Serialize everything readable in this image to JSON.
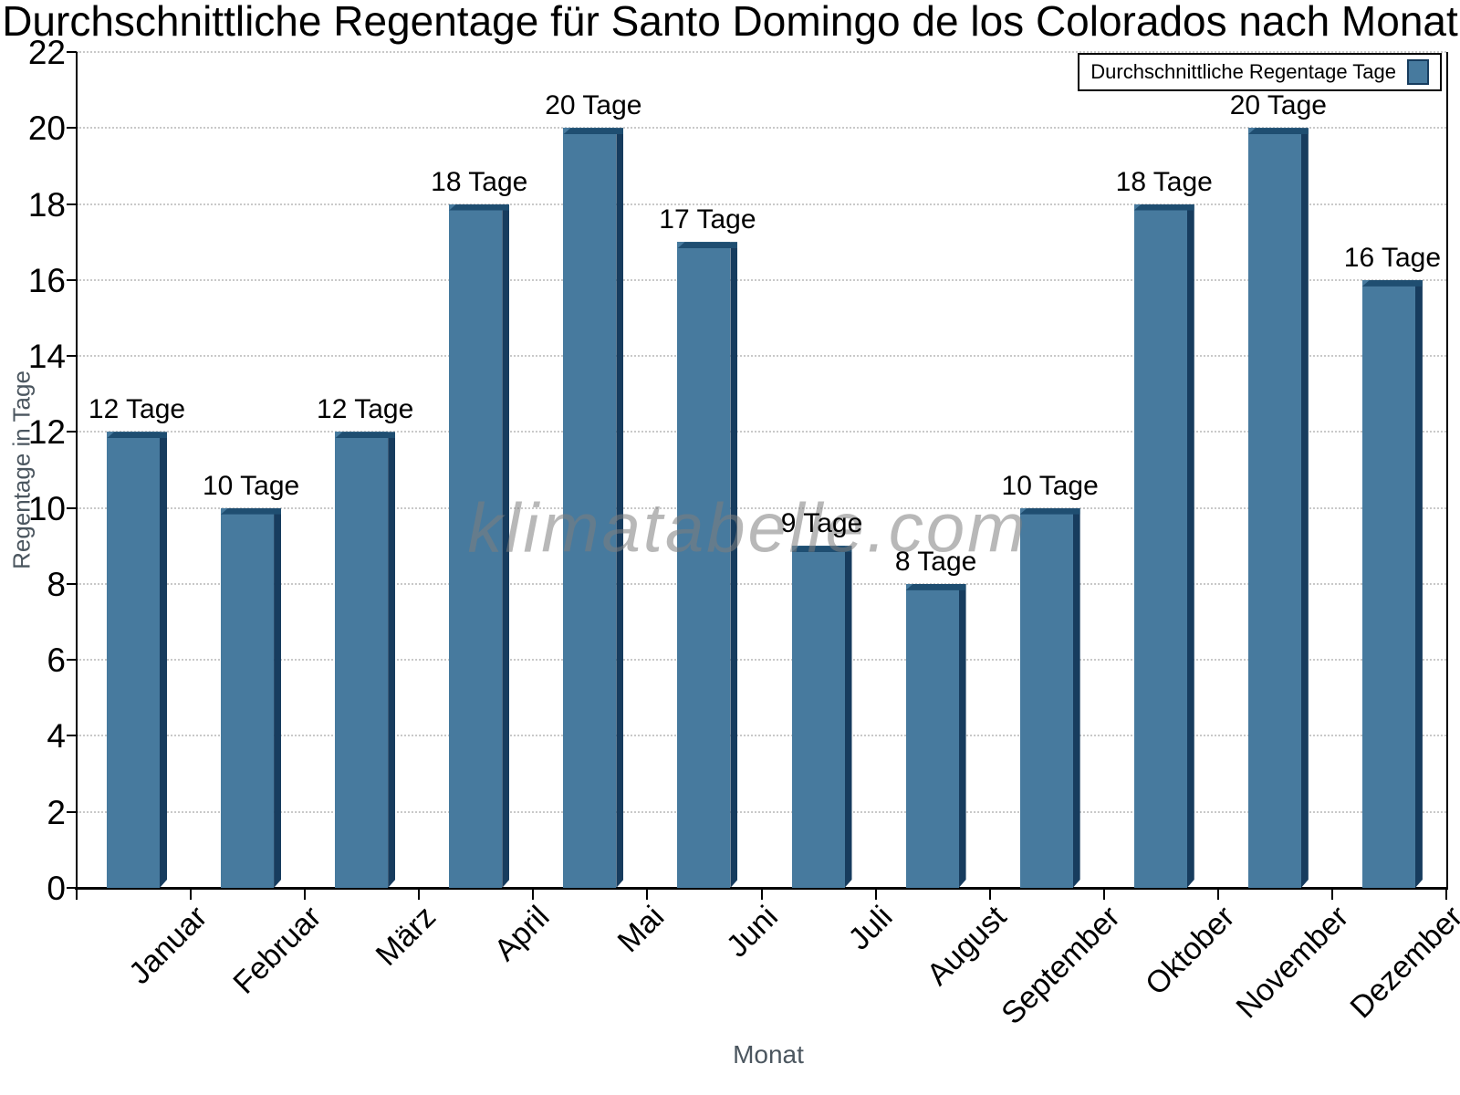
{
  "chart_data": {
    "type": "bar",
    "title": "Durchschnittliche Regentage für Santo Domingo de los Colorados nach Monat",
    "categories": [
      "Januar",
      "Februar",
      "März",
      "April",
      "Mai",
      "Juni",
      "Juli",
      "August",
      "September",
      "Oktober",
      "November",
      "Dezember"
    ],
    "values": [
      12,
      10,
      12,
      18,
      20,
      17,
      9,
      8,
      10,
      18,
      20,
      16
    ],
    "value_label_suffix": " Tage",
    "value_labels": [
      "12 Tage",
      "10 Tage",
      "12 Tage",
      "18 Tage",
      "20 Tage",
      "17 Tage",
      "9 Tage",
      "8 Tage",
      "10 Tage",
      "18 Tage",
      "20 Tage",
      "16 Tage"
    ],
    "xlabel": "Monat",
    "ylabel": "Regentage in Tage",
    "ylim": [
      0,
      22
    ],
    "ytick_step": 2,
    "grid": "horizontal-dotted",
    "legend_position": "top-right",
    "legend_label": "Durchschnittliche Regentage Tage",
    "colors": {
      "bar_face": "#477A9E",
      "bar_top": "#1F4E71",
      "bar_side": "#173C5E",
      "gridline": "#c9c9c9",
      "axis": "#000000",
      "axis_title": "#4b565f"
    }
  },
  "watermark": {
    "text": "klimatabelle.com"
  }
}
